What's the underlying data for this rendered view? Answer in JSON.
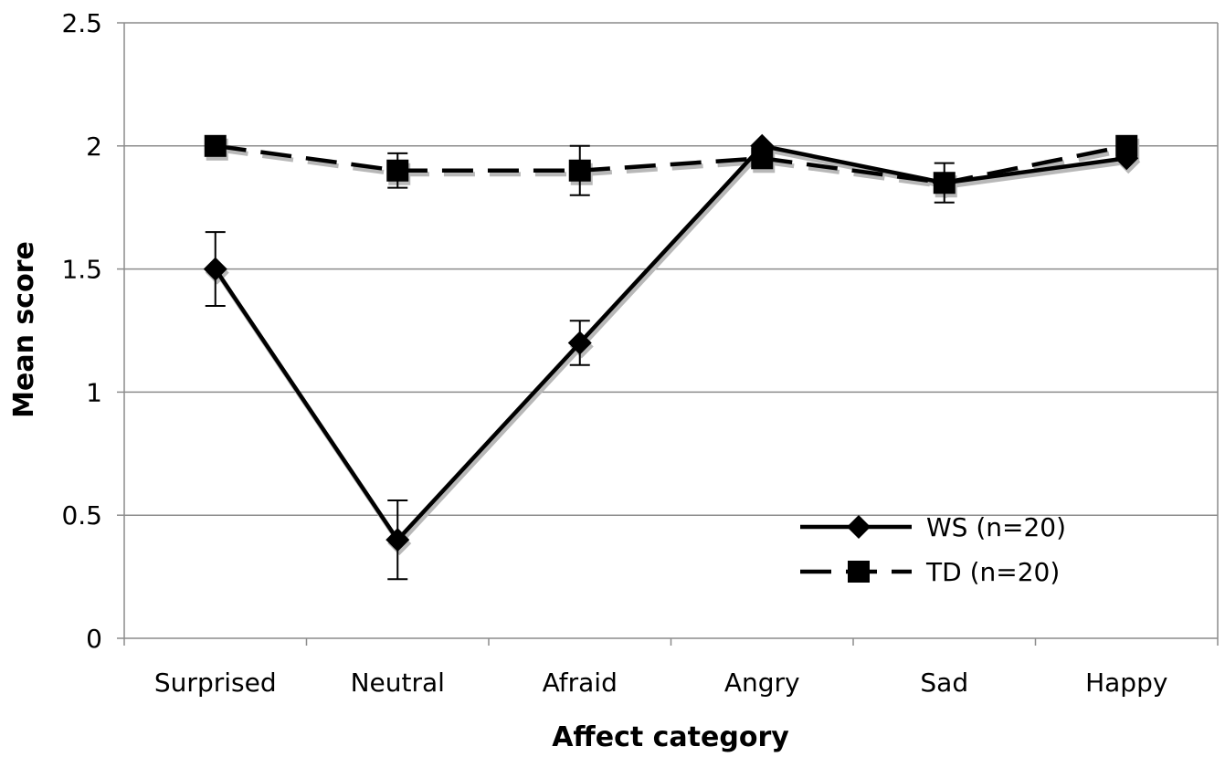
{
  "chart_data": {
    "type": "line",
    "title": "",
    "xlabel": "Affect category",
    "ylabel": "Mean score",
    "categories": [
      "Surprised",
      "Neutral",
      "Afraid",
      "Angry",
      "Sad",
      "Happy"
    ],
    "ylim": [
      0,
      2.5
    ],
    "yticks": [
      "0",
      "0.5",
      "1",
      "1.5",
      "2",
      "2.5"
    ],
    "grid": true,
    "legend_position": "bottom-right",
    "series": [
      {
        "name": "WS (n=20)",
        "marker": "diamond",
        "line_style": "solid",
        "color": "#000000",
        "values": [
          1.5,
          0.4,
          1.2,
          2.0,
          1.85,
          1.95
        ],
        "error": [
          0.15,
          0.16,
          0.09,
          0.0,
          0.0,
          0.0
        ]
      },
      {
        "name": "TD (n=20)",
        "marker": "square",
        "line_style": "dashed",
        "color": "#000000",
        "values": [
          2.0,
          1.9,
          1.9,
          1.95,
          1.85,
          2.0
        ],
        "error": [
          0.0,
          0.07,
          0.1,
          0.0,
          0.08,
          0.0
        ]
      }
    ]
  }
}
